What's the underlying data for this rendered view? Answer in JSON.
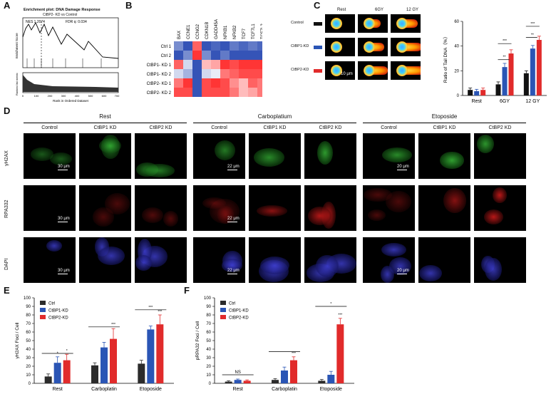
{
  "panels": {
    "a": "A",
    "b": "B",
    "c": "C",
    "d": "D",
    "e": "E",
    "f": "F"
  },
  "gsea": {
    "title": "Enrichment plot: DNA Damage Response",
    "subtitle": "CtBP2- KD vs Control",
    "nes": "NES   1.2074",
    "fdr": "FDR   q: 0.034",
    "ylabel_top": "Enrichment Score",
    "ylabel_bottom": "Ranked list metric",
    "xlabel": "Rank in Ordered Dataset",
    "xticks": [
      "0",
      "100",
      "200",
      "300",
      "400",
      "500",
      "600",
      "700"
    ]
  },
  "heatmap": {
    "genes": [
      "BAX",
      "CCNE1",
      "CCNG2",
      "CDKN1B",
      "GADD45A",
      "NFKB1",
      "NFKB2",
      "TCF7",
      "TCF7L1",
      "TCF7L2",
      "TGFB1"
    ],
    "rows": [
      "Ctrl 1",
      "Ctrl 2",
      "CtBP1- KD 1",
      "CtBP1- KD 2",
      "CtBP2- KD 1",
      "CtBP2- KD 2"
    ],
    "legend_max": "row max",
    "legend_min": "row min",
    "values": [
      [
        -0.6,
        -0.9,
        0.7,
        -0.9,
        -0.8,
        -0.9,
        -0.7,
        -0.8,
        -0.7,
        -0.8,
        -0.7
      ],
      [
        -0.9,
        -0.6,
        0.9,
        -0.6,
        -0.9,
        -0.7,
        -0.9,
        -0.9,
        -0.9,
        -0.9,
        -0.9
      ],
      [
        0.7,
        -0.2,
        -0.9,
        0.3,
        0.4,
        0.9,
        0.8,
        0.9,
        0.9,
        0.9,
        0.8
      ],
      [
        -0.2,
        -0.4,
        -0.9,
        -0.2,
        -0.1,
        0.6,
        0.7,
        0.8,
        0.8,
        0.8,
        0.8
      ],
      [
        0.6,
        0.9,
        -0.9,
        0.8,
        0.9,
        0.8,
        0.5,
        0.3,
        0.7,
        0.6,
        0.8
      ],
      [
        0.8,
        0.8,
        -0.9,
        0.8,
        0.8,
        0.8,
        0.6,
        0.3,
        0.4,
        0.6,
        0.7
      ]
    ]
  },
  "comet": {
    "cols": [
      "Rest",
      "6GY",
      "12 GY"
    ],
    "rows": [
      "Control",
      "CtBP1-KD",
      "CtBP2-KD"
    ],
    "row_colors": [
      "#111111",
      "#2a55b5",
      "#e12b2b"
    ],
    "scale_label": "10 μm"
  },
  "chart_data": [
    {
      "type": "bar",
      "title": "",
      "ylabel": "Ratio of Tail DNA（%）",
      "categories": [
        "Rest",
        "6GY",
        "12 GY"
      ],
      "ylim": [
        0,
        60
      ],
      "yticks": [
        "0",
        "20",
        "40",
        "60"
      ],
      "legend": "none",
      "series": [
        {
          "name": "Control",
          "color": "#111111",
          "values": [
            4.5,
            9,
            18
          ],
          "errors": [
            1.5,
            2,
            2
          ]
        },
        {
          "name": "CtBP1-KD",
          "color": "#2a55b5",
          "values": [
            3.5,
            23,
            38
          ],
          "errors": [
            1.5,
            3,
            2.5
          ]
        },
        {
          "name": "CtBP2-KD",
          "color": "#e12b2b",
          "values": [
            4.5,
            34,
            45
          ],
          "errors": [
            1.5,
            3,
            3
          ]
        }
      ],
      "significance": [
        "**",
        "***",
        "**",
        "***"
      ]
    },
    {
      "type": "bar",
      "title": "",
      "ylabel": "γH2AX Foci / Cell",
      "categories": [
        "Rest",
        "Carboplatin",
        "Etoposide"
      ],
      "ylim": [
        0,
        100
      ],
      "yticks": [
        "0",
        "10",
        "20",
        "30",
        "40",
        "50",
        "60",
        "70",
        "80",
        "90",
        "100"
      ],
      "legend": "top-left",
      "series": [
        {
          "name": "Ctrl",
          "color": "#2b2b2b",
          "values": [
            8,
            21,
            23
          ],
          "errors": [
            3,
            3,
            4
          ]
        },
        {
          "name": "CtBP1-KD",
          "color": "#2a55b5",
          "values": [
            24,
            42,
            63
          ],
          "errors": [
            7,
            6,
            4
          ]
        },
        {
          "name": "CtBP2-KD",
          "color": "#e12b2b",
          "values": [
            27,
            52,
            69
          ],
          "errors": [
            7,
            12,
            11
          ]
        }
      ],
      "significance": [
        "*",
        "*",
        "*",
        "***",
        "***",
        "***"
      ]
    },
    {
      "type": "bar",
      "title": "",
      "ylabel": "pRPA32 Foci / Cell",
      "categories": [
        "Rest",
        "Carboplatin",
        "Etoposide"
      ],
      "ylim": [
        0,
        100
      ],
      "yticks": [
        "0",
        "10",
        "20",
        "30",
        "40",
        "50",
        "60",
        "70",
        "80",
        "90",
        "100"
      ],
      "legend": "top-left",
      "series": [
        {
          "name": "Ctrl",
          "color": "#2b2b2b",
          "values": [
            2,
            4,
            3
          ],
          "errors": [
            1,
            1.5,
            1.5
          ]
        },
        {
          "name": "CtBP1-KD",
          "color": "#2a55b5",
          "values": [
            4,
            15,
            10
          ],
          "errors": [
            1,
            4,
            4
          ]
        },
        {
          "name": "CtBP2-KD",
          "color": "#e12b2b",
          "values": [
            3,
            27,
            69
          ],
          "errors": [
            1,
            4,
            7
          ]
        }
      ],
      "significance": [
        "NS",
        "*",
        "***",
        "*",
        "***"
      ]
    }
  ],
  "micrographs": {
    "groups": [
      "Rest",
      "Carboplatium",
      "Etoposide"
    ],
    "cols": [
      "Control",
      "CtBP1 KD",
      "CtBP2 KD",
      "Control",
      "CtBP1 KD",
      "CtBP2 KD",
      "Control",
      "CtBP1 KD",
      "CtBP2 KD"
    ],
    "rows": [
      "γH2AX",
      "RPA332",
      "DAPI"
    ],
    "scale_bars": {
      "rest": "30 μm",
      "carbo": "22 μm",
      "etop": "20 μm"
    }
  }
}
